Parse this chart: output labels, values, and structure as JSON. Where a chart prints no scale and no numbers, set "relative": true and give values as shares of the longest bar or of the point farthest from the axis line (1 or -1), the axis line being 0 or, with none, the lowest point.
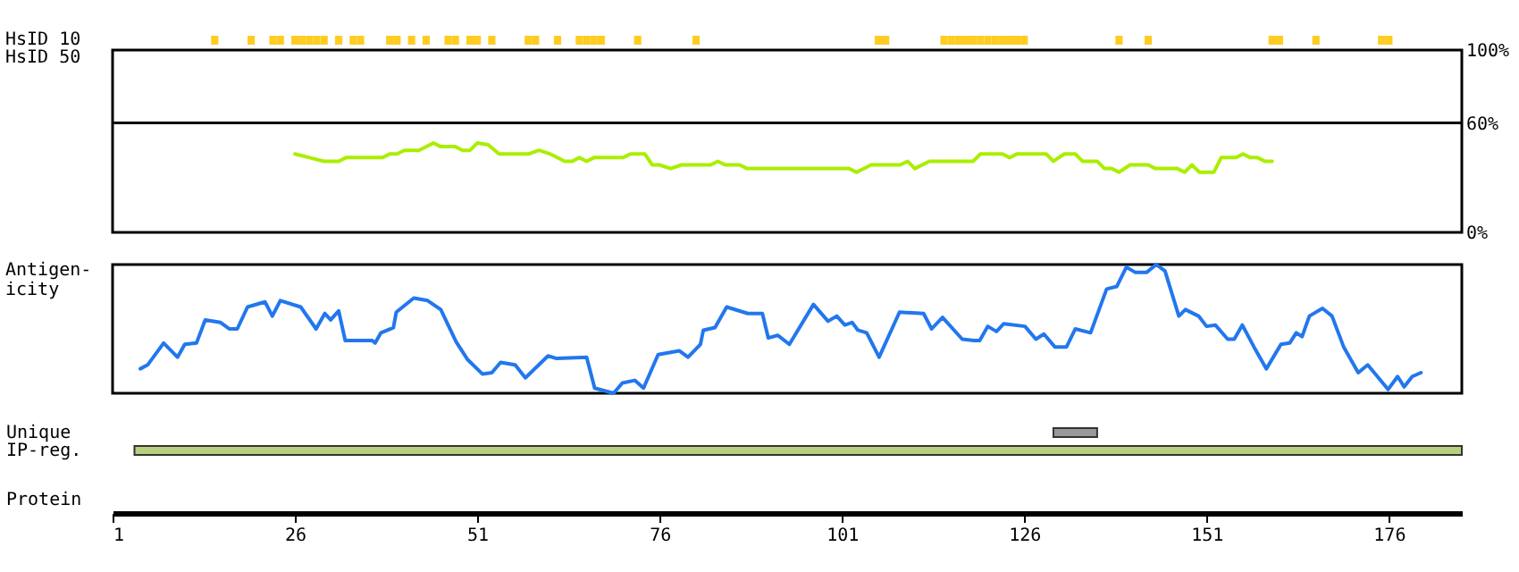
{
  "chart_data": [
    {
      "type": "bar",
      "ylabel": "HsID 10",
      "relative": true,
      "tick_labels": false,
      "xlim": [
        1,
        186
      ],
      "color": "#ffcc22",
      "x": [
        15,
        20,
        23,
        24,
        26,
        27,
        28,
        29,
        30,
        32,
        34,
        35,
        39,
        40,
        42,
        44,
        47,
        48,
        50,
        51,
        53,
        58,
        59,
        62,
        65,
        66,
        67,
        68,
        73,
        81,
        106,
        107,
        115,
        116,
        117,
        118,
        119,
        120,
        121,
        122,
        123,
        124,
        125,
        126,
        139,
        143,
        160,
        161,
        166,
        175,
        176
      ],
      "values": [
        1,
        1,
        1,
        1,
        1,
        1,
        1,
        1,
        1,
        1,
        1,
        1,
        1,
        1,
        1,
        1,
        1,
        1,
        1,
        1,
        1,
        1,
        1,
        1,
        1,
        1,
        1,
        1,
        1,
        1,
        1,
        1,
        1,
        1,
        1,
        1,
        1,
        1,
        1,
        1,
        1,
        1,
        1,
        1,
        1,
        1,
        1,
        1,
        1,
        1,
        1
      ]
    },
    {
      "type": "line",
      "ylabel": "HsID 50",
      "xlim": [
        1,
        186
      ],
      "ylim": [
        0,
        100
      ],
      "yticks": [
        {
          "value": 0,
          "label": "0%"
        },
        {
          "value": 60,
          "label": "60%"
        },
        {
          "value": 100,
          "label": "100%"
        }
      ],
      "tick_labels": "y",
      "ref_lines": [
        {
          "axis": "y",
          "value": 60,
          "color": "#000000"
        }
      ],
      "series": [
        {
          "color": "#aaee00",
          "x": [
            26,
            28,
            30,
            32,
            33,
            38,
            39,
            40,
            41,
            43,
            45,
            46,
            48,
            49,
            50,
            51,
            52.5,
            54,
            58,
            59.5,
            61,
            63,
            64,
            65,
            66,
            67,
            71,
            72,
            74,
            75,
            76,
            77.5,
            79,
            83,
            84,
            85,
            87,
            88,
            91,
            102,
            103,
            105,
            109,
            110,
            111,
            113,
            119,
            120,
            123,
            124,
            125,
            129,
            130,
            131.5,
            133,
            134,
            136,
            137,
            138,
            139,
            140.5,
            143,
            144,
            147,
            148,
            149,
            150,
            152,
            153,
            155,
            156,
            157,
            158,
            159,
            160
          ],
          "values": [
            43,
            41,
            39,
            39,
            41,
            41,
            43,
            43,
            45,
            45,
            49,
            47,
            47,
            45,
            45,
            49,
            48,
            43,
            43,
            45,
            43,
            39,
            39,
            41,
            39,
            41,
            41,
            43,
            43,
            37,
            37,
            35,
            37,
            37,
            39,
            37,
            37,
            35,
            35,
            35,
            33,
            37,
            37,
            39,
            35,
            39,
            39,
            43,
            43,
            41,
            43,
            43,
            39,
            43,
            43,
            39,
            39,
            35,
            35,
            33,
            37,
            37,
            35,
            35,
            33,
            37,
            33,
            33,
            41,
            41,
            43,
            41,
            41,
            39,
            39
          ]
        }
      ]
    },
    {
      "type": "line",
      "ylabel": "Antigen-\nicity",
      "xlim": [
        1,
        186
      ],
      "relative": true,
      "tick_labels": false,
      "series": [
        {
          "color": "#2277ee",
          "x": [
            4.8,
            5.8,
            8,
            9.9,
            10.9,
            12.5,
            13.7,
            15.8,
            17,
            18.1,
            19.5,
            21.9,
            22.9,
            24,
            26.8,
            28.9,
            30.1,
            30.9,
            32,
            32.9,
            36.6,
            37,
            37.8,
            39.5,
            39.9,
            42.3,
            44.2,
            46,
            48.1,
            49.7,
            51.7,
            53,
            54.2,
            56.2,
            57.6,
            60.7,
            61.9,
            66,
            67.1,
            69.7,
            70.9,
            72.6,
            73.8,
            75.8,
            78.7,
            79.9,
            81.6,
            82,
            83.6,
            85.2,
            88.1,
            90.1,
            90.9,
            92.2,
            93.8,
            97.1,
            99.1,
            100.3,
            101.4,
            102.4,
            103.2,
            104.4,
            106.1,
            108.9,
            112.2,
            113.3,
            114.8,
            117.5,
            119.1,
            119.9,
            121,
            122.2,
            123.2,
            126.1,
            127.6,
            128.7,
            130.2,
            131.8,
            133,
            135.1,
            137.3,
            138.7,
            140,
            141.2,
            142.8,
            144.1,
            145.3,
            147.2,
            148.1,
            149.9,
            151,
            152.2,
            153.9,
            154.8,
            155.9,
            157.5,
            159.2,
            161.2,
            162.4,
            163.3,
            164.1,
            165.1,
            166.9,
            168.2,
            169.8,
            171.8,
            173.1,
            175.9,
            177.2,
            178.1,
            179.2,
            180.4
          ],
          "values": [
            0.19,
            0.22,
            0.39,
            0.28,
            0.38,
            0.39,
            0.57,
            0.55,
            0.5,
            0.5,
            0.67,
            0.71,
            0.6,
            0.72,
            0.67,
            0.5,
            0.62,
            0.57,
            0.64,
            0.41,
            0.41,
            0.39,
            0.47,
            0.51,
            0.63,
            0.74,
            0.72,
            0.65,
            0.4,
            0.26,
            0.15,
            0.16,
            0.24,
            0.22,
            0.12,
            0.29,
            0.27,
            0.28,
            0.04,
            0,
            0.08,
            0.1,
            0.04,
            0.3,
            0.33,
            0.28,
            0.38,
            0.49,
            0.51,
            0.67,
            0.62,
            0.62,
            0.43,
            0.45,
            0.38,
            0.69,
            0.56,
            0.6,
            0.53,
            0.55,
            0.49,
            0.47,
            0.28,
            0.63,
            0.62,
            0.5,
            0.59,
            0.42,
            0.41,
            0.41,
            0.52,
            0.48,
            0.54,
            0.52,
            0.42,
            0.46,
            0.36,
            0.36,
            0.5,
            0.47,
            0.81,
            0.83,
            0.98,
            0.94,
            0.94,
            1,
            0.95,
            0.6,
            0.65,
            0.6,
            0.52,
            0.53,
            0.42,
            0.42,
            0.53,
            0.36,
            0.19,
            0.38,
            0.39,
            0.47,
            0.44,
            0.6,
            0.66,
            0.6,
            0.36,
            0.16,
            0.22,
            0.03,
            0.13,
            0.05,
            0.13,
            0.16
          ]
        }
      ]
    },
    {
      "type": "bar",
      "orientation": "horizontal",
      "categories": [
        "Unique",
        "IP-reg."
      ],
      "base": [
        130,
        4
      ],
      "values": [
        6,
        182
      ],
      "colors": [
        "#999999",
        "#b8cf80"
      ],
      "xlabel": "Protein",
      "xlim": [
        1,
        186
      ],
      "xticks": [
        1,
        26,
        51,
        76,
        101,
        126,
        151,
        176
      ]
    }
  ]
}
